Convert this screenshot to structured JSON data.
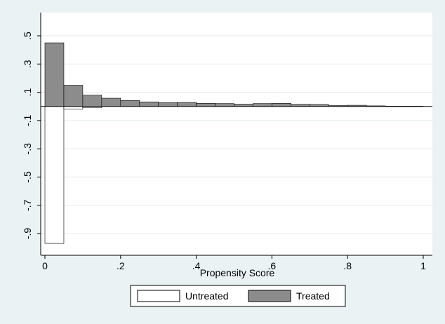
{
  "chart_data": {
    "type": "bar",
    "xlabel": "Propensity Score",
    "ylabel": "",
    "xlim": [
      0,
      1
    ],
    "ylim": [
      -1.0,
      0.6
    ],
    "xticks": [
      "0",
      ".2",
      ".4",
      ".6",
      ".8",
      "1"
    ],
    "yticks": [
      ".5",
      ".3",
      ".1",
      "-.1",
      "-.3",
      "-.5",
      "-.7",
      "-.9"
    ],
    "bin_width": 0.05,
    "grid": true,
    "legend_position": "bottom",
    "colors": {
      "background": "#eaf2f3",
      "plot": "#ffffff",
      "treated": "#8c8c8c",
      "untreated": "#ffffff",
      "grid": "#e6ebee"
    },
    "series": [
      {
        "name": "Untreated",
        "x": [
          0.0,
          0.05,
          0.1
        ],
        "values": [
          -0.97,
          -0.02,
          -0.01
        ]
      },
      {
        "name": "Treated",
        "x": [
          0.0,
          0.05,
          0.1,
          0.15,
          0.2,
          0.25,
          0.3,
          0.35,
          0.4,
          0.45,
          0.5,
          0.55,
          0.6,
          0.65,
          0.7,
          0.75,
          0.8,
          0.85,
          0.9,
          0.95
        ],
        "values": [
          0.45,
          0.15,
          0.08,
          0.058,
          0.042,
          0.032,
          0.026,
          0.028,
          0.022,
          0.02,
          0.016,
          0.02,
          0.022,
          0.015,
          0.014,
          0.006,
          0.008,
          0.004,
          0.002,
          0.002
        ]
      }
    ]
  }
}
